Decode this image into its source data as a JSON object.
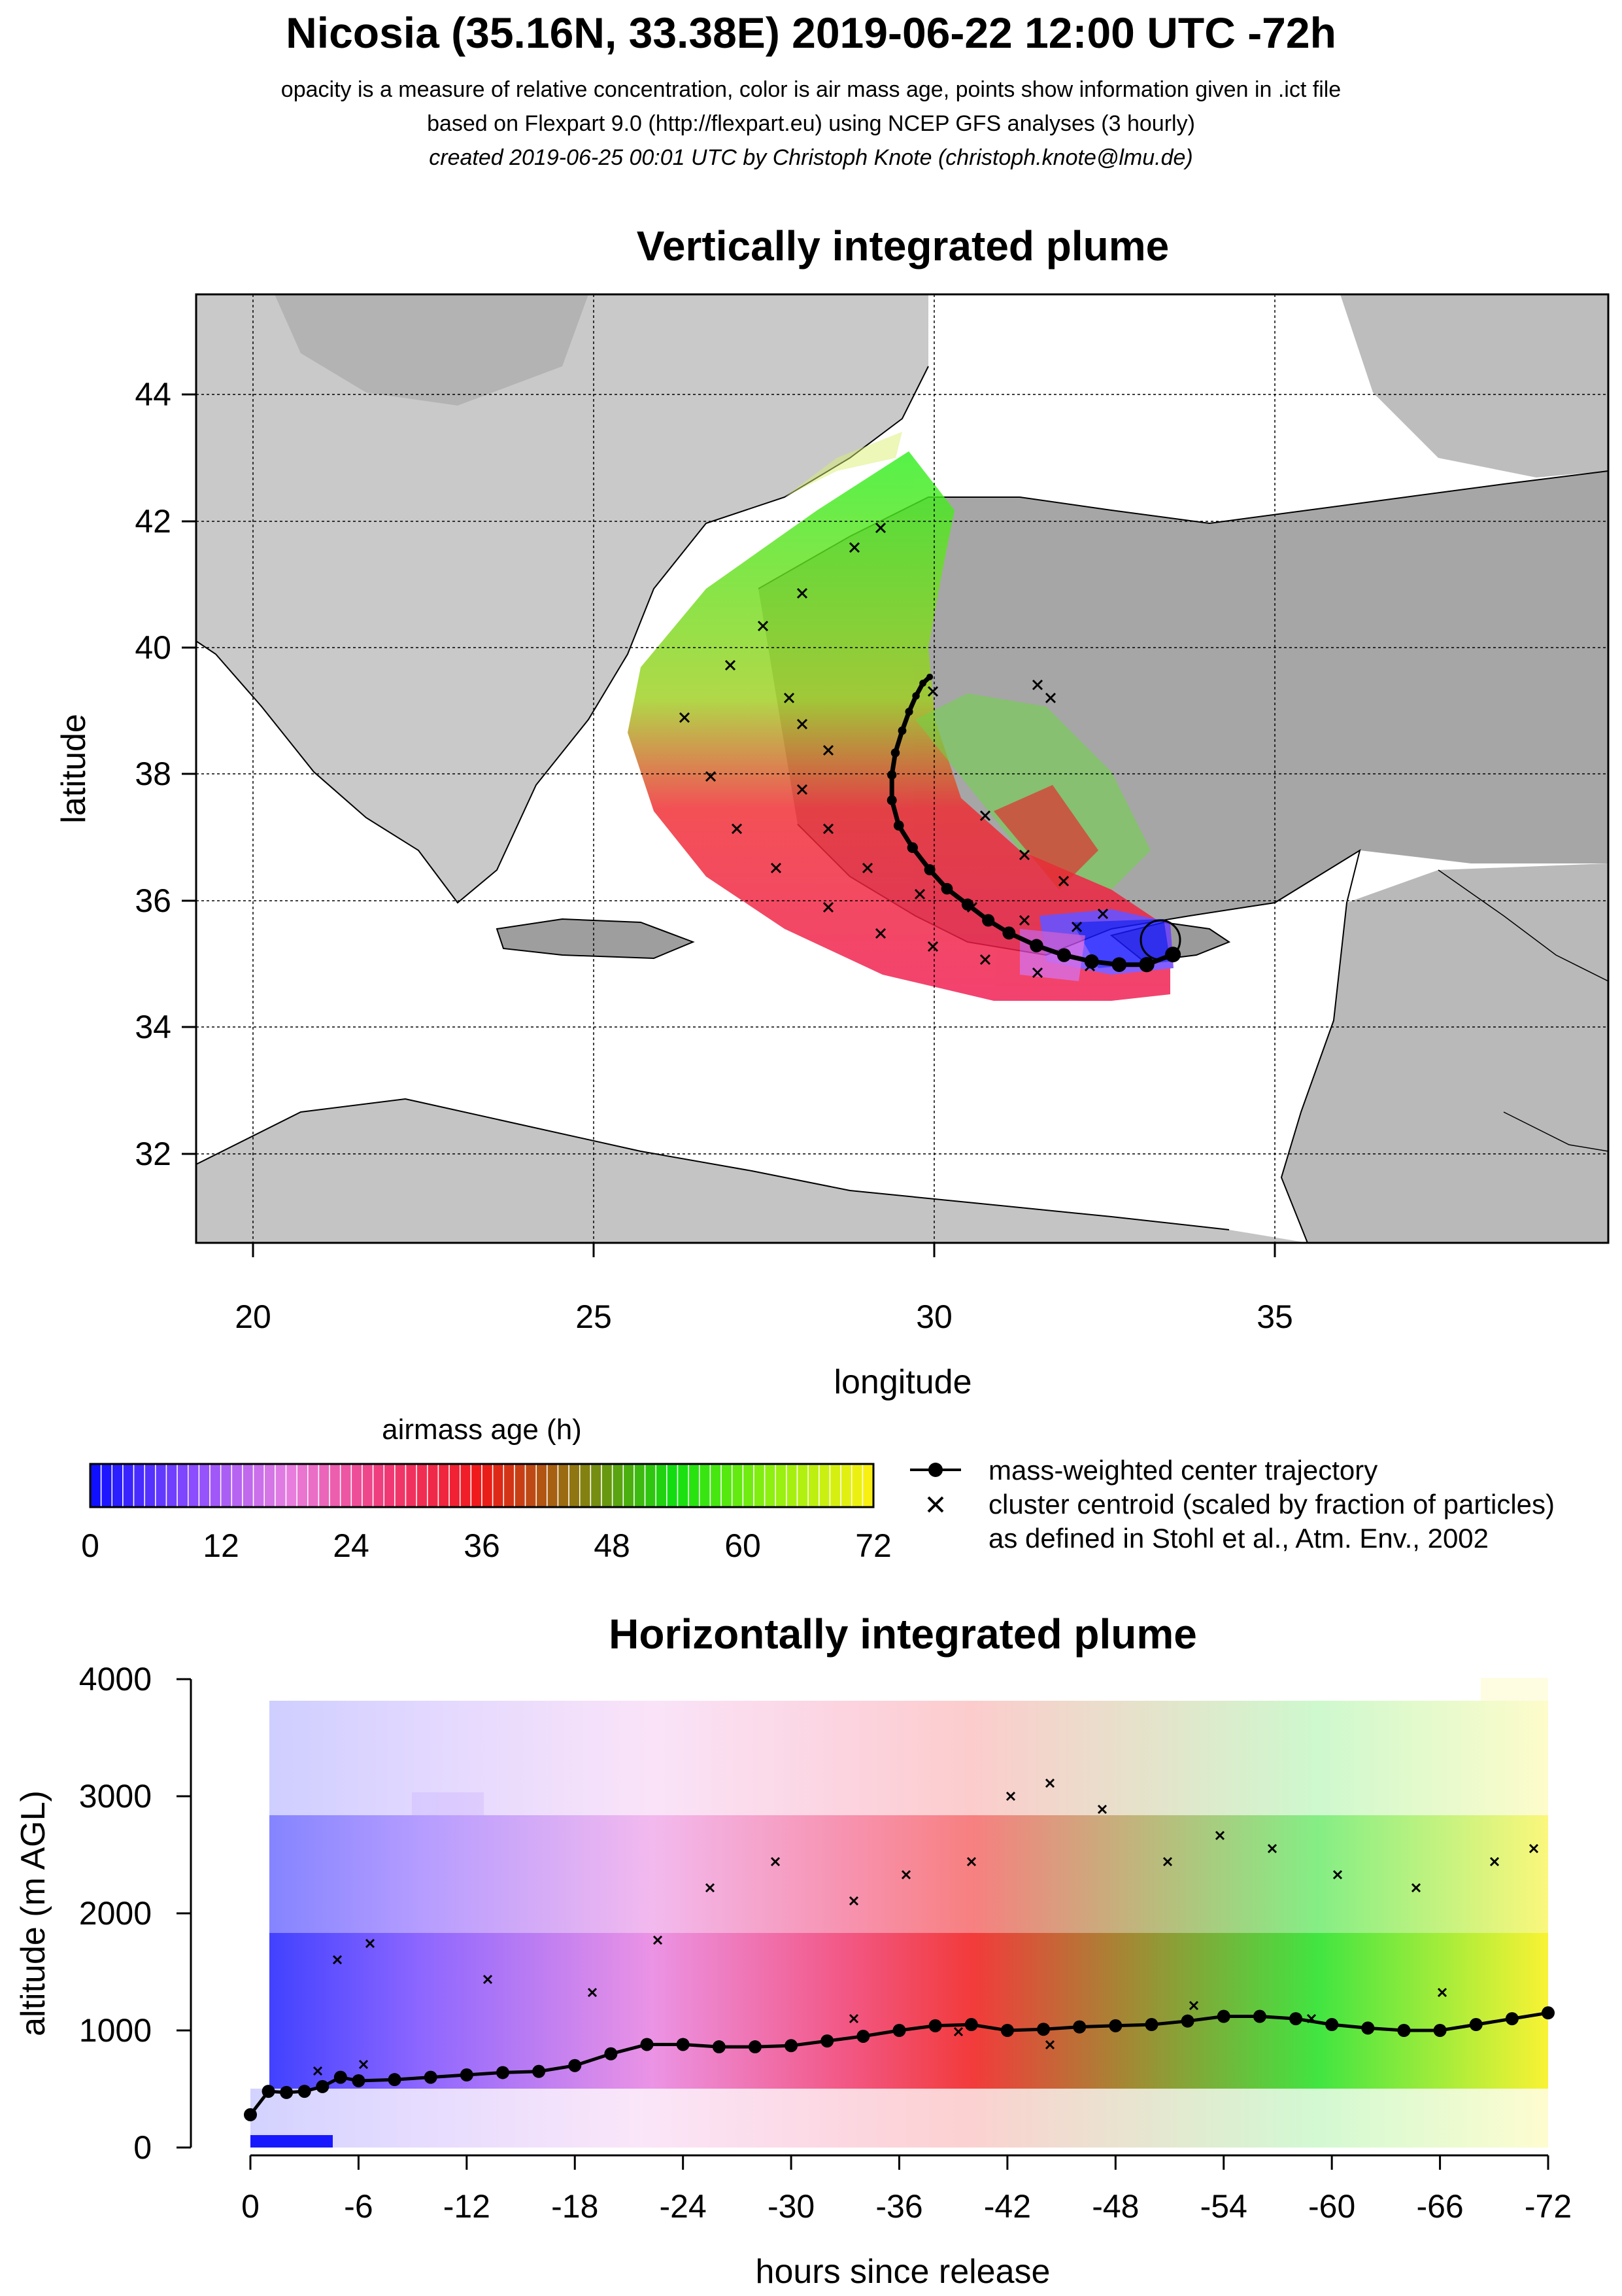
{
  "header": {
    "title": "Nicosia (35.16N, 33.38E) 2019-06-22 12:00 UTC -72h",
    "line1": "opacity is a measure of relative concentration, color is air mass age, points show information given in .ict file",
    "line2": "based on Flexpart 9.0 (http://flexpart.eu) using NCEP GFS analyses (3 hourly)",
    "line3": "created 2019-06-25 00:01 UTC by Christoph Knote (christoph.knote@lmu.de)"
  },
  "chart_data": [
    {
      "type": "scatter",
      "title": "Vertically integrated plume",
      "xlabel": "longitude",
      "ylabel": "latitude",
      "xlim": [
        19.2,
        39.7
      ],
      "ylim": [
        30.6,
        45.6
      ],
      "x_ticks": [
        20,
        25,
        30,
        35
      ],
      "y_ticks": [
        32,
        34,
        36,
        38,
        40,
        42,
        44
      ],
      "grid": true,
      "release_site": {
        "lon": 33.38,
        "lat": 35.16
      },
      "center_trajectory": {
        "lon": [
          33.38,
          33.0,
          32.6,
          32.2,
          31.8,
          31.4,
          31.0,
          30.7,
          30.4,
          30.1,
          29.85,
          29.6,
          29.4,
          29.3,
          29.3,
          29.35,
          29.45,
          29.55,
          29.65,
          29.75,
          29.85
        ],
        "lat": [
          35.16,
          35.0,
          35.0,
          35.05,
          35.15,
          35.3,
          35.5,
          35.7,
          35.95,
          36.2,
          36.5,
          36.85,
          37.2,
          37.6,
          38.0,
          38.35,
          38.7,
          39.0,
          39.25,
          39.45,
          39.55
        ]
      },
      "colorbar": {
        "label": "airmass age (h)",
        "min": 0,
        "max": 72,
        "ticks": [
          0,
          12,
          24,
          36,
          48,
          60,
          72
        ],
        "colors": [
          "#1010ff",
          "#8a4cff",
          "#e87fe0",
          "#f03a78",
          "#f01818",
          "#8c7a10",
          "#10e010",
          "#90f010",
          "#f8f010"
        ]
      },
      "legend": {
        "trajectory": "mass-weighted center trajectory",
        "centroid": "cluster centroid (scaled by fraction of particles)",
        "ref": "as defined in Stohl et al., Atm. Env., 2002"
      }
    },
    {
      "type": "line",
      "title": "Horizontally integrated plume",
      "xlabel": "hours since release",
      "ylabel": "altitude (m AGL)",
      "xlim": [
        0,
        -72
      ],
      "ylim": [
        0,
        4000
      ],
      "x_ticks": [
        0,
        -6,
        -12,
        -18,
        -24,
        -30,
        -36,
        -42,
        -48,
        -54,
        -60,
        -66,
        -72
      ],
      "y_ticks": [
        0,
        1000,
        2000,
        3000,
        4000
      ],
      "series": [
        {
          "hours": [
            0,
            -1,
            -2,
            -3,
            -4,
            -5,
            -6,
            -8,
            -10,
            -12,
            -14,
            -16,
            -18,
            -20,
            -22,
            -24,
            -26,
            -28,
            -30,
            -32,
            -34,
            -36,
            -38,
            -40,
            -42,
            -44,
            -46,
            -48,
            -50,
            -52,
            -54,
            -56,
            -58,
            -60,
            -62,
            -64,
            -66,
            -68,
            -70,
            -72
          ],
          "altitude": [
            280,
            480,
            470,
            480,
            520,
            600,
            570,
            580,
            600,
            620,
            640,
            650,
            700,
            800,
            880,
            880,
            860,
            860,
            870,
            910,
            950,
            1000,
            1040,
            1050,
            1000,
            1010,
            1030,
            1040,
            1050,
            1080,
            1120,
            1120,
            1100,
            1050,
            1020,
            1000,
            1000,
            1050,
            1100,
            1150
          ]
        }
      ]
    }
  ]
}
